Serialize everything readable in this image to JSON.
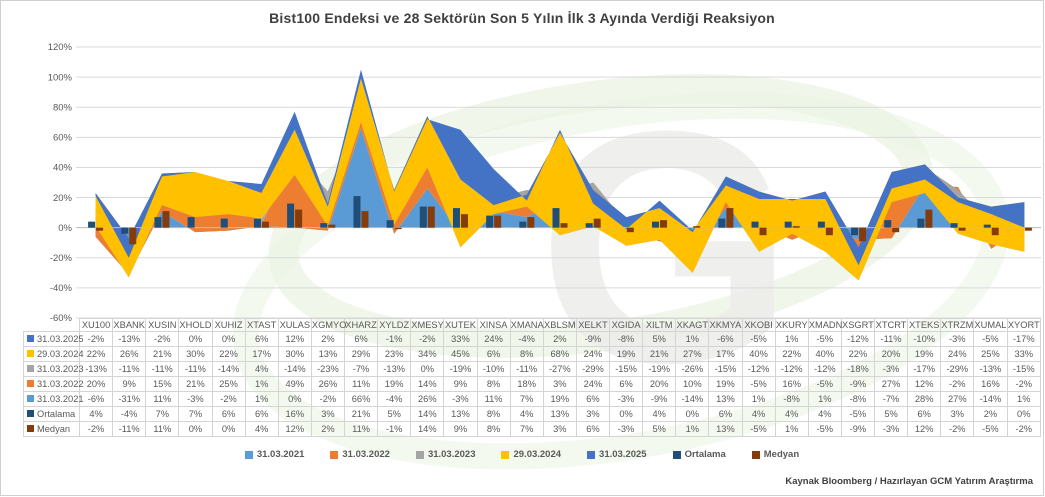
{
  "title": "Bist100 Endeksi ve 28 Sektörün Son 5 Yılın İlk 3 Ayında Verdiği Reaksiyon",
  "footer": "Kaynak Bloomberg / Hazırlayan GCM Yatırım Araştırma",
  "watermark_letter": "G",
  "colors": {
    "grid": "#d9d9d9",
    "zero_line": "#bfbfbf",
    "axis_text": "#595959",
    "title_text": "#404040",
    "watermark_gray": "#ededeb",
    "watermark_green": "#e3efd8",
    "watermark_green2": "#eaf3e2",
    "s2021": "#5B9BD5",
    "s2022": "#ED7D31",
    "s2023": "#A5A5A5",
    "s2024": "#FFC000",
    "s2025": "#4472C4",
    "ortalama": "#1F4E79",
    "medyan": "#843C0C"
  },
  "chart_data": {
    "type": "combo",
    "subtype": {
      "area_series": "stacked-area",
      "bar_series": "clustered-column-from-zero"
    },
    "grid": "horizontal-on",
    "legend_position": "bottom",
    "categories": [
      "XU100",
      "XBANK",
      "XUSIN",
      "XHOLD",
      "XUHIZ",
      "XTAST",
      "XULAS",
      "XGMYO",
      "XHARZ",
      "XYLDZ",
      "XMESY",
      "XUTEK",
      "XINSA",
      "XMANA",
      "XBLSM",
      "XELKT",
      "XGIDA",
      "XILTM",
      "XKAGT",
      "XKMYA",
      "XKOBI",
      "XKURY",
      "XMADN",
      "XSGRT",
      "XTCRT",
      "XTEKS",
      "XTRZM",
      "XUMAL",
      "XYORT"
    ],
    "y_axis": {
      "min": -60,
      "max": 120,
      "step": 20,
      "tick_values": [
        120,
        100,
        80,
        60,
        40,
        20,
        0,
        -20,
        -40,
        -60
      ],
      "tick_labels": [
        "120%",
        "100%",
        "80%",
        "60%",
        "40%",
        "20%",
        "0%",
        "-20%",
        "-40%",
        "-60%"
      ]
    },
    "area_series": [
      {
        "name": "31.03.2021",
        "color": "#5B9BD5",
        "values": [
          -6,
          -31,
          11,
          -3,
          -2,
          1,
          0,
          -2,
          66,
          -4,
          26,
          -3,
          11,
          7,
          19,
          6,
          -3,
          -9,
          -14,
          13,
          1,
          -8,
          1,
          -8,
          -7,
          28,
          27,
          -14,
          1
        ]
      },
      {
        "name": "31.03.2022",
        "color": "#ED7D31",
        "values": [
          20,
          9,
          15,
          21,
          25,
          1,
          49,
          26,
          11,
          19,
          14,
          9,
          8,
          18,
          3,
          24,
          6,
          20,
          10,
          19,
          -5,
          16,
          -5,
          -9,
          27,
          12,
          -2,
          16,
          -2
        ]
      },
      {
        "name": "31.03.2023",
        "color": "#A5A5A5",
        "values": [
          -13,
          -11,
          -11,
          -11,
          -14,
          4,
          -14,
          -23,
          -7,
          -13,
          0,
          -19,
          -10,
          -11,
          -27,
          -29,
          -15,
          -19,
          -26,
          -15,
          -12,
          -12,
          -12,
          -18,
          -3,
          -17,
          -29,
          -13,
          -15
        ]
      },
      {
        "name": "29.03.2024",
        "color": "#FFC000",
        "values": [
          22,
          26,
          21,
          30,
          22,
          17,
          30,
          13,
          29,
          23,
          34,
          45,
          6,
          8,
          68,
          24,
          19,
          21,
          27,
          17,
          40,
          22,
          40,
          22,
          20,
          19,
          24,
          25,
          33
        ]
      },
      {
        "name": "31.03.2025",
        "color": "#4472C4",
        "values": [
          -2,
          -13,
          -2,
          0,
          0,
          6,
          12,
          2,
          6,
          -1,
          -2,
          33,
          24,
          -4,
          2,
          -9,
          -8,
          5,
          1,
          -6,
          -5,
          1,
          -5,
          -12,
          -11,
          -10,
          -3,
          -5,
          -17
        ]
      }
    ],
    "bar_series": [
      {
        "name": "Ortalama",
        "color": "#1F4E79",
        "values": [
          4,
          -4,
          7,
          7,
          6,
          6,
          16,
          3,
          21,
          5,
          14,
          13,
          8,
          4,
          13,
          3,
          0,
          4,
          0,
          6,
          4,
          4,
          4,
          -5,
          5,
          6,
          3,
          2,
          0
        ]
      },
      {
        "name": "Medyan",
        "color": "#843C0C",
        "values": [
          -2,
          -11,
          11,
          0,
          0,
          4,
          12,
          2,
          11,
          -1,
          14,
          9,
          8,
          7,
          3,
          6,
          -3,
          5,
          1,
          13,
          -5,
          1,
          -5,
          -9,
          -3,
          12,
          -2,
          -5,
          -2
        ]
      }
    ]
  },
  "table": {
    "value_suffix": "%",
    "columns": [
      "XU100",
      "XBANK",
      "XUSIN",
      "XHOLD",
      "XUHIZ",
      "XTAST",
      "XULAS",
      "XGMYO",
      "XHARZ",
      "XYLDZ",
      "XMESY",
      "XUTEK",
      "XINSA",
      "XMANA",
      "XBLSM",
      "XELKT",
      "XGIDA",
      "XILTM",
      "XKAGT",
      "XKMYA",
      "XKOBI",
      "XKURY",
      "XMADN",
      "XSGRT",
      "XTCRT",
      "XTEKS",
      "XTRZM",
      "XUMAL",
      "XYORT"
    ],
    "rows": [
      {
        "label": "31.03.2025",
        "swatch": "#4472C4",
        "values": [
          -2,
          -13,
          -2,
          0,
          0,
          6,
          12,
          2,
          6,
          -1,
          -2,
          33,
          24,
          -4,
          2,
          -9,
          -8,
          5,
          1,
          -6,
          -5,
          1,
          -5,
          -12,
          -11,
          -10,
          -3,
          -5,
          -17
        ]
      },
      {
        "label": "29.03.2024",
        "swatch": "#FFC000",
        "values": [
          22,
          26,
          21,
          30,
          22,
          17,
          30,
          13,
          29,
          23,
          34,
          45,
          6,
          8,
          68,
          24,
          19,
          21,
          27,
          17,
          40,
          22,
          40,
          22,
          20,
          19,
          24,
          25,
          33
        ]
      },
      {
        "label": "31.03.2023",
        "swatch": "#A5A5A5",
        "values": [
          -13,
          -11,
          -11,
          -11,
          -14,
          4,
          -14,
          -23,
          -7,
          -13,
          0,
          -19,
          -10,
          -11,
          -27,
          -29,
          -15,
          -19,
          -26,
          -15,
          -12,
          -12,
          -12,
          -18,
          -3,
          -17,
          -29,
          -13,
          -15
        ]
      },
      {
        "label": "31.03.2022",
        "swatch": "#ED7D31",
        "values": [
          20,
          9,
          15,
          21,
          25,
          1,
          49,
          26,
          11,
          19,
          14,
          9,
          8,
          18,
          3,
          24,
          6,
          20,
          10,
          19,
          -5,
          16,
          -5,
          -9,
          27,
          12,
          -2,
          16,
          -2
        ]
      },
      {
        "label": "31.03.2021",
        "swatch": "#5B9BD5",
        "values": [
          -6,
          -31,
          11,
          -3,
          -2,
          1,
          0,
          -2,
          66,
          -4,
          26,
          -3,
          11,
          7,
          19,
          6,
          -3,
          -9,
          -14,
          13,
          1,
          -8,
          1,
          -8,
          -7,
          28,
          27,
          -14,
          1
        ]
      },
      {
        "label": "Ortalama",
        "swatch": "#1F4E79",
        "values": [
          4,
          -4,
          7,
          7,
          6,
          6,
          16,
          3,
          21,
          5,
          14,
          13,
          8,
          4,
          13,
          3,
          0,
          4,
          0,
          6,
          4,
          4,
          4,
          -5,
          5,
          6,
          3,
          2,
          0
        ]
      },
      {
        "label": "Medyan",
        "swatch": "#843C0C",
        "values": [
          -2,
          -11,
          11,
          0,
          0,
          4,
          12,
          2,
          11,
          -1,
          14,
          9,
          8,
          7,
          3,
          6,
          -3,
          5,
          1,
          13,
          -5,
          1,
          -5,
          -9,
          -3,
          12,
          -2,
          -5,
          -2
        ]
      }
    ]
  },
  "legend": {
    "items": [
      {
        "label": "31.03.2021",
        "color": "#5B9BD5"
      },
      {
        "label": "31.03.2022",
        "color": "#ED7D31"
      },
      {
        "label": "31.03.2023",
        "color": "#A5A5A5"
      },
      {
        "label": "29.03.2024",
        "color": "#FFC000"
      },
      {
        "label": "31.03.2025",
        "color": "#4472C4"
      },
      {
        "label": "Ortalama",
        "color": "#1F4E79"
      },
      {
        "label": "Medyan",
        "color": "#843C0C"
      }
    ]
  }
}
